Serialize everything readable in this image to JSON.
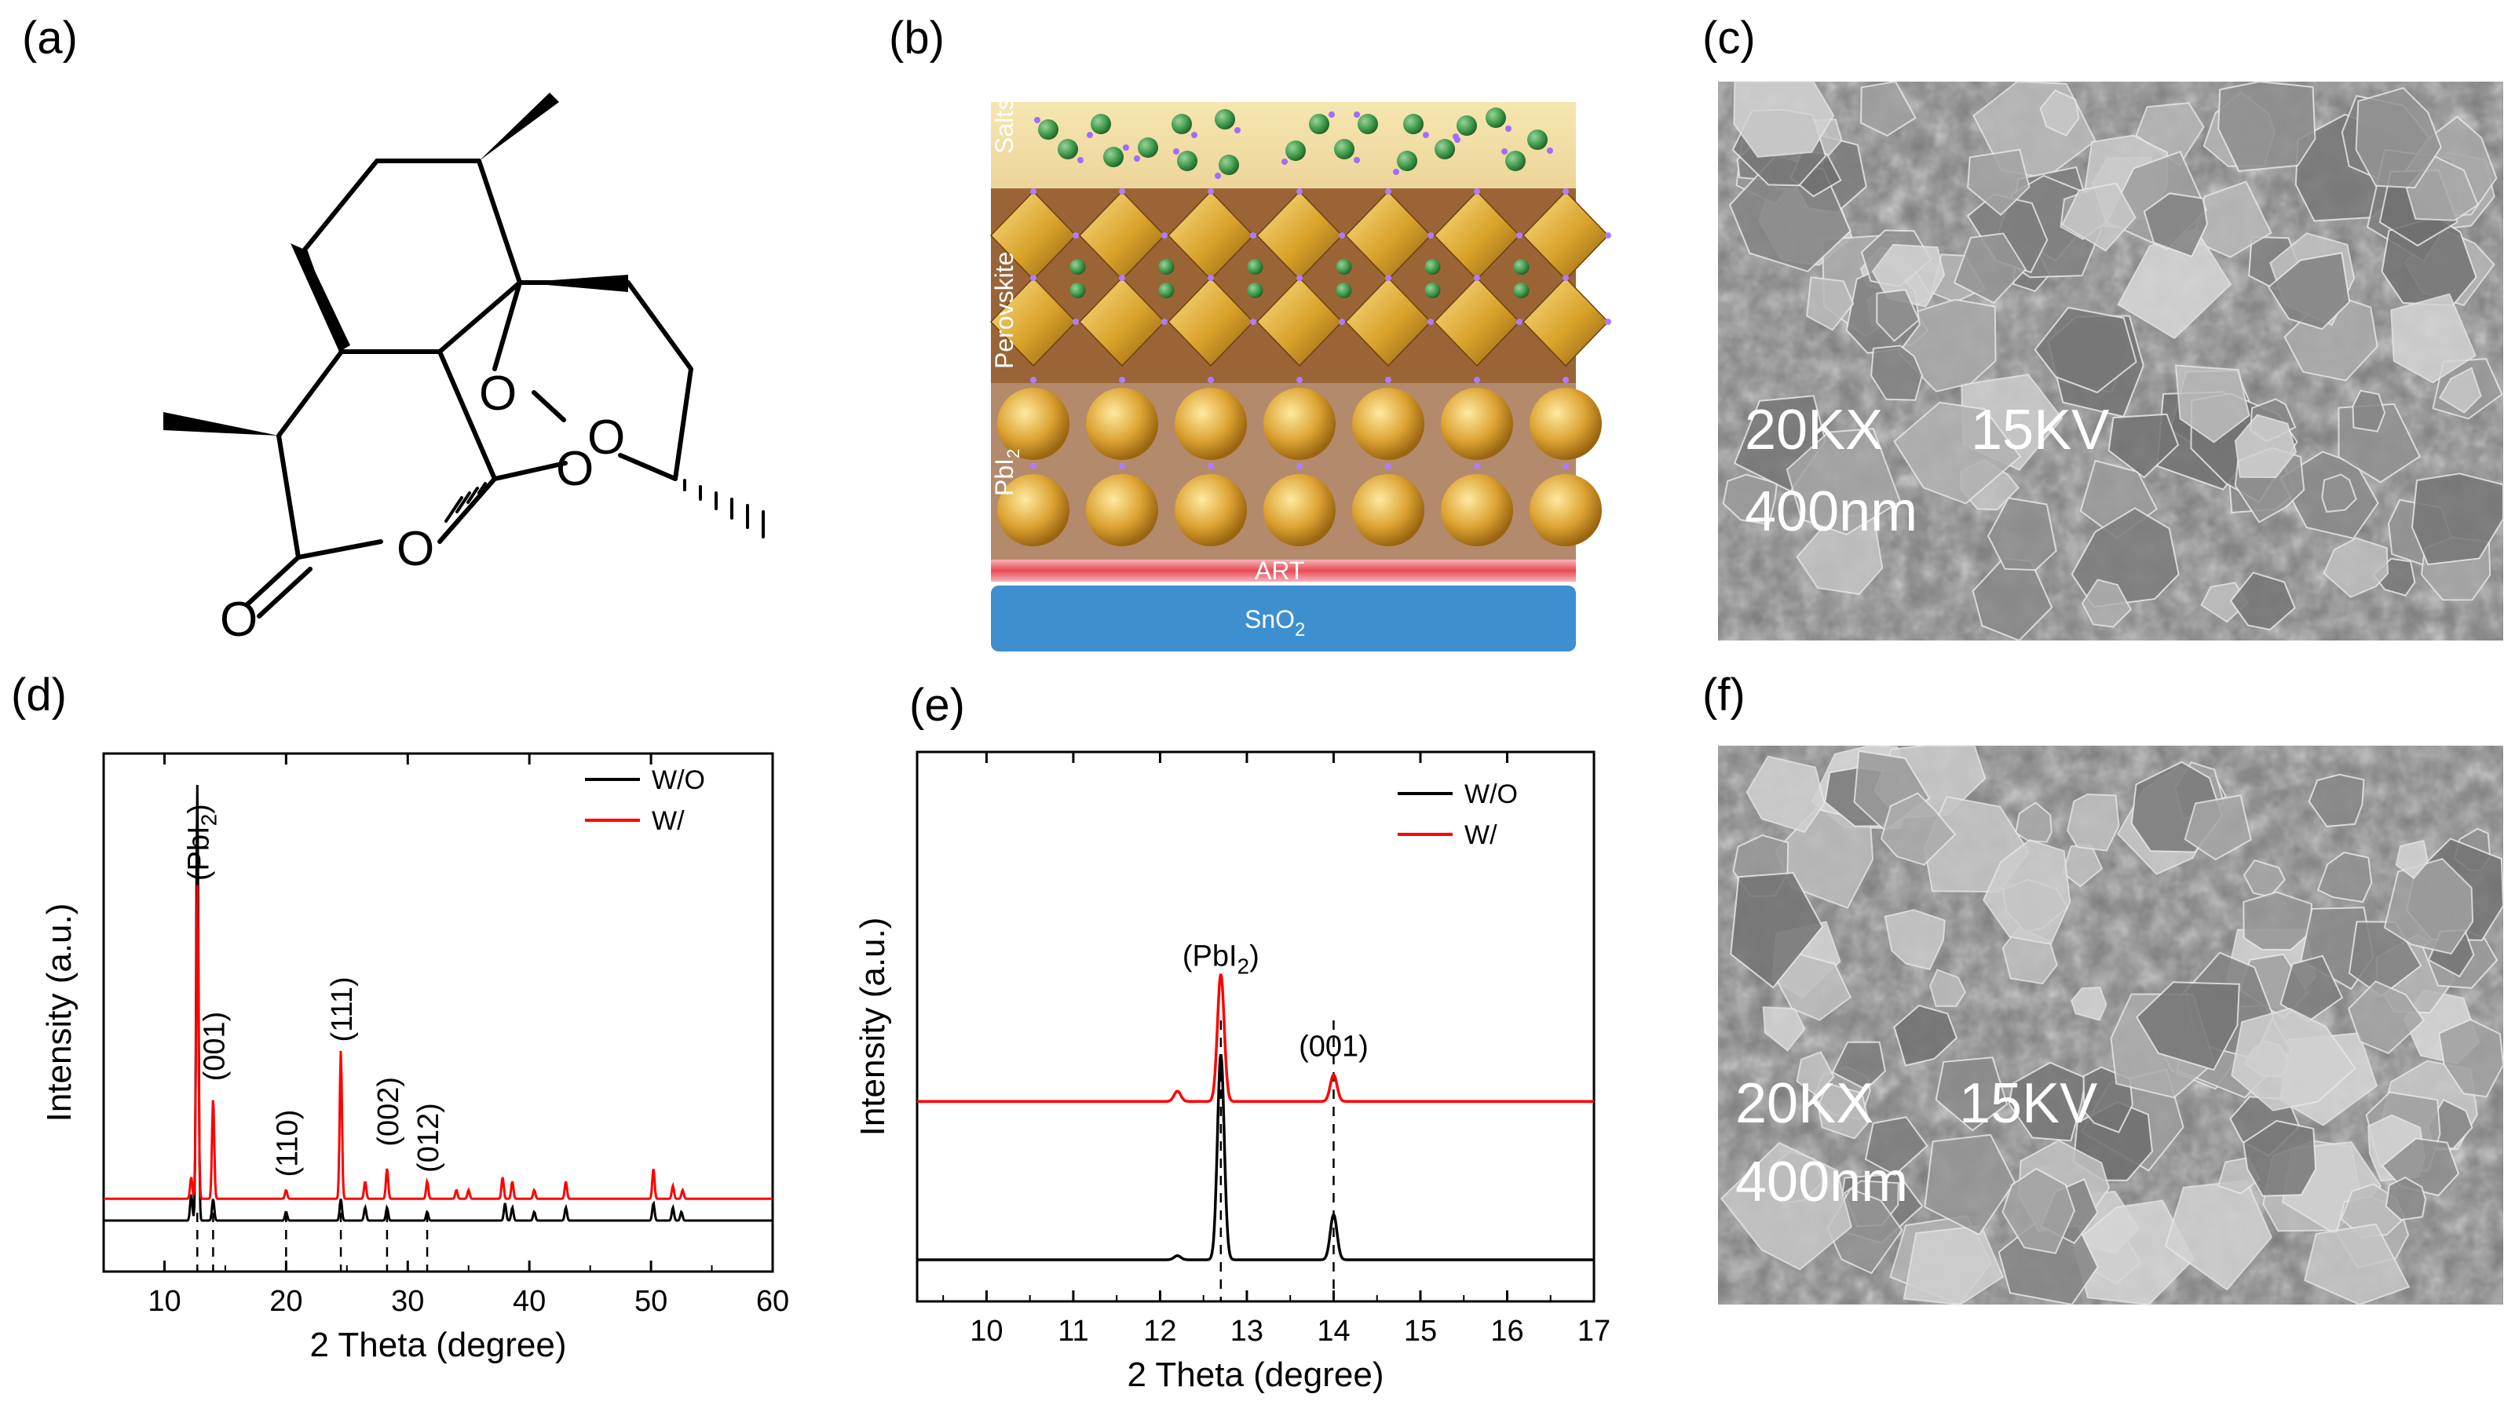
{
  "panels": {
    "a": {
      "label": "(a)",
      "atoms": [
        "O",
        "O",
        "O",
        "O",
        "O"
      ]
    },
    "b": {
      "label": "(b)",
      "layers": [
        "Salts",
        "Perovskite",
        "PbI",
        "2",
        "ART",
        "SnO",
        "2"
      ]
    },
    "c": {
      "label": "(c)",
      "sem": {
        "mag": "20KX",
        "kv": "15KV",
        "scale": "400nm"
      }
    },
    "d": {
      "label": "(d)"
    },
    "e": {
      "label": "(e)"
    },
    "f": {
      "label": "(f)",
      "sem": {
        "mag": "20KX",
        "kv": "15KV",
        "scale": "400nm"
      }
    }
  },
  "chart_data": [
    {
      "id": "d",
      "type": "line",
      "xlabel": "2 Theta (degree)",
      "ylabel": "Intensity (a.u.)",
      "xlim": [
        5,
        60
      ],
      "xticks": [
        10,
        20,
        30,
        40,
        50,
        60
      ],
      "legend": {
        "placement": "top-right",
        "entries": [
          "W/O",
          "W/"
        ]
      },
      "series": [
        {
          "name": "W/O",
          "color": "#000000",
          "offset": 0,
          "peaks": [
            [
              12.2,
              0.06
            ],
            [
              12.7,
              1.0
            ],
            [
              14.0,
              0.05
            ],
            [
              20.0,
              0.02
            ],
            [
              24.5,
              0.05
            ],
            [
              26.5,
              0.03
            ],
            [
              28.3,
              0.03
            ],
            [
              31.6,
              0.02
            ],
            [
              38.0,
              0.04
            ],
            [
              38.6,
              0.03
            ],
            [
              40.4,
              0.02
            ],
            [
              43.0,
              0.03
            ],
            [
              50.2,
              0.04
            ],
            [
              51.8,
              0.03
            ],
            [
              52.5,
              0.02
            ]
          ]
        },
        {
          "name": "W/",
          "color": "#ff0000",
          "offset": 0.05,
          "peaks": [
            [
              12.2,
              0.05
            ],
            [
              12.7,
              0.72
            ],
            [
              14.0,
              0.23
            ],
            [
              20.0,
              0.02
            ],
            [
              24.5,
              0.34
            ],
            [
              26.5,
              0.04
            ],
            [
              28.3,
              0.07
            ],
            [
              31.6,
              0.04
            ],
            [
              34.0,
              0.02
            ],
            [
              35.0,
              0.02
            ],
            [
              37.8,
              0.05
            ],
            [
              38.6,
              0.04
            ],
            [
              40.4,
              0.02
            ],
            [
              43.0,
              0.04
            ],
            [
              50.2,
              0.07
            ],
            [
              51.8,
              0.03
            ],
            [
              52.6,
              0.02
            ]
          ]
        }
      ],
      "vlines": [
        12.7,
        14.0,
        20.0,
        24.5,
        28.3,
        31.6
      ],
      "annotations": [
        {
          "text": "(PbI",
          "sub": "2",
          "close": ")",
          "x": 12.7,
          "rotate": true,
          "level": 0.78
        },
        {
          "text": "(001)",
          "x": 14.0,
          "rotate": true,
          "level": 0.32
        },
        {
          "text": "(110)",
          "x": 20.0,
          "rotate": true,
          "level": 0.1
        },
        {
          "text": "(111)",
          "x": 24.5,
          "rotate": true,
          "level": 0.41
        },
        {
          "text": "(002)",
          "x": 28.3,
          "rotate": true,
          "level": 0.17
        },
        {
          "text": "(012)",
          "x": 31.6,
          "rotate": true,
          "level": 0.11
        }
      ]
    },
    {
      "id": "e",
      "type": "line",
      "xlabel": "2 Theta (degree)",
      "ylabel": "Intensity (a.u.)",
      "xlim": [
        9.2,
        17.0
      ],
      "xticks": [
        10,
        11,
        12,
        13,
        14,
        15,
        16,
        17
      ],
      "legend": {
        "placement": "top-right",
        "entries": [
          "W/O",
          "W/"
        ]
      },
      "series": [
        {
          "name": "W/O",
          "color": "#000000",
          "offset": 0,
          "peaks": [
            [
              12.2,
              0.02
            ],
            [
              12.7,
              1.0
            ],
            [
              14.0,
              0.22
            ]
          ]
        },
        {
          "name": "W/",
          "color": "#ff0000",
          "offset": 0.77,
          "peaks": [
            [
              12.2,
              0.05
            ],
            [
              12.7,
              0.62
            ],
            [
              14.0,
              0.13
            ]
          ]
        }
      ],
      "vlines": [
        12.7,
        14.0
      ],
      "annotations": [
        {
          "text": "(PbI",
          "sub": "2",
          "close": ")",
          "x": 12.7,
          "rotate": false,
          "level": 1.43
        },
        {
          "text": "(001)",
          "x": 14.0,
          "rotate": false,
          "level": 0.99
        }
      ]
    }
  ]
}
